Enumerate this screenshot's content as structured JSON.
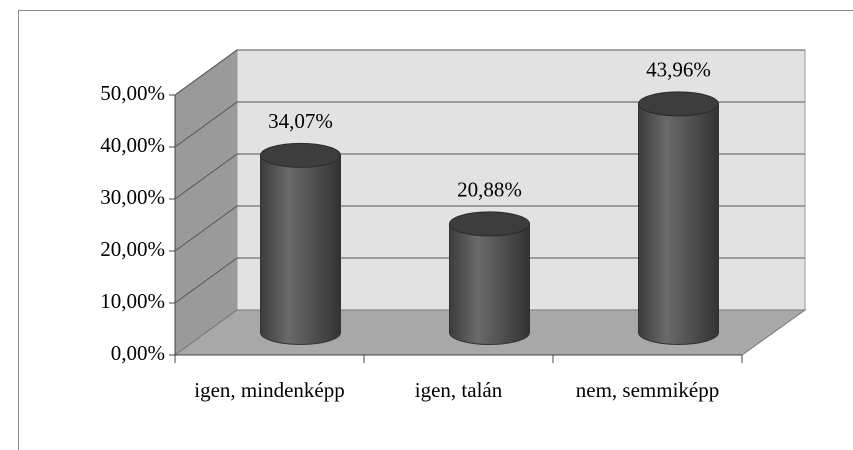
{
  "chart_data": {
    "type": "bar",
    "categories": [
      "igen, mindenképp",
      "igen, talán",
      "nem, semmiképp"
    ],
    "values": [
      34.07,
      20.88,
      43.96
    ],
    "value_labels": [
      "34,07%",
      "20,88%",
      "43,96%"
    ],
    "color": "#4d4d4d",
    "ylim": [
      0,
      50
    ],
    "yticks": [
      {
        "value": 0,
        "label": "0,00%"
      },
      {
        "value": 10,
        "label": "10,00%"
      },
      {
        "value": 20,
        "label": "20,00%"
      },
      {
        "value": 30,
        "label": "30,00%"
      },
      {
        "value": 40,
        "label": "40,00%"
      },
      {
        "value": 50,
        "label": "50,00%"
      }
    ],
    "grid": true
  }
}
